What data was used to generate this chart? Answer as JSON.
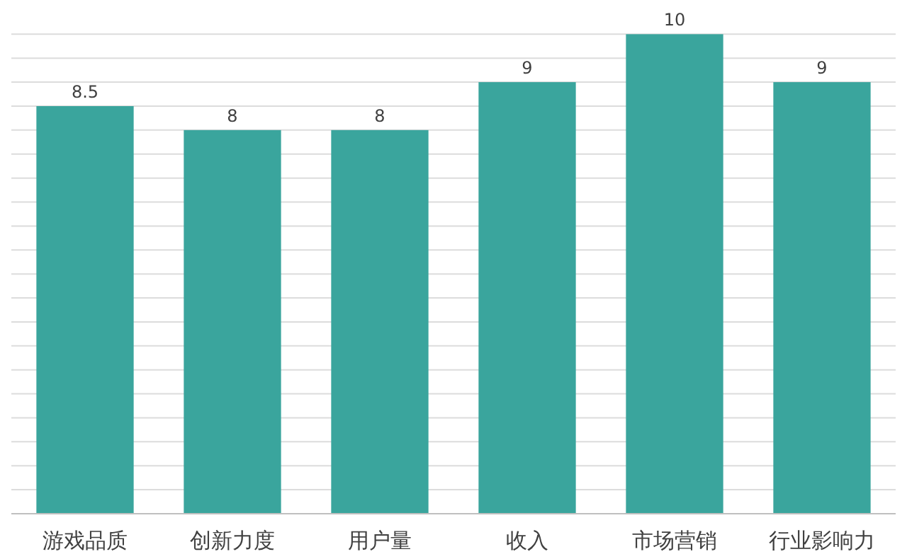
{
  "chart_data": {
    "type": "bar",
    "categories": [
      "游戏品质",
      "创新力度",
      "用户量",
      "收入",
      "市场营销",
      "行业影响力"
    ],
    "values": [
      8.5,
      8,
      8,
      9,
      10,
      9
    ],
    "color": "#3aa59d",
    "data_labels": true,
    "grid": "y",
    "yticks": [
      {
        "value": 0,
        "label": null
      },
      {
        "value": 0.5,
        "label": null
      },
      {
        "value": 1,
        "label": null
      },
      {
        "value": 1.5,
        "label": null
      },
      {
        "value": 2,
        "label": null
      },
      {
        "value": 2.5,
        "label": null
      },
      {
        "value": 3,
        "label": null
      },
      {
        "value": 3.5,
        "label": null
      },
      {
        "value": 4,
        "label": null
      },
      {
        "value": 4.5,
        "label": null
      },
      {
        "value": 5,
        "label": null
      },
      {
        "value": 5.5,
        "label": null
      },
      {
        "value": 6,
        "label": null
      },
      {
        "value": 6.5,
        "label": null
      },
      {
        "value": 7,
        "label": null
      },
      {
        "value": 7.5,
        "label": null
      },
      {
        "value": 8,
        "label": null
      },
      {
        "value": 8.5,
        "label": null
      },
      {
        "value": 9,
        "label": null
      },
      {
        "value": 9.5,
        "label": null
      },
      {
        "value": 10,
        "label": null
      }
    ],
    "tick_labels": "x"
  }
}
